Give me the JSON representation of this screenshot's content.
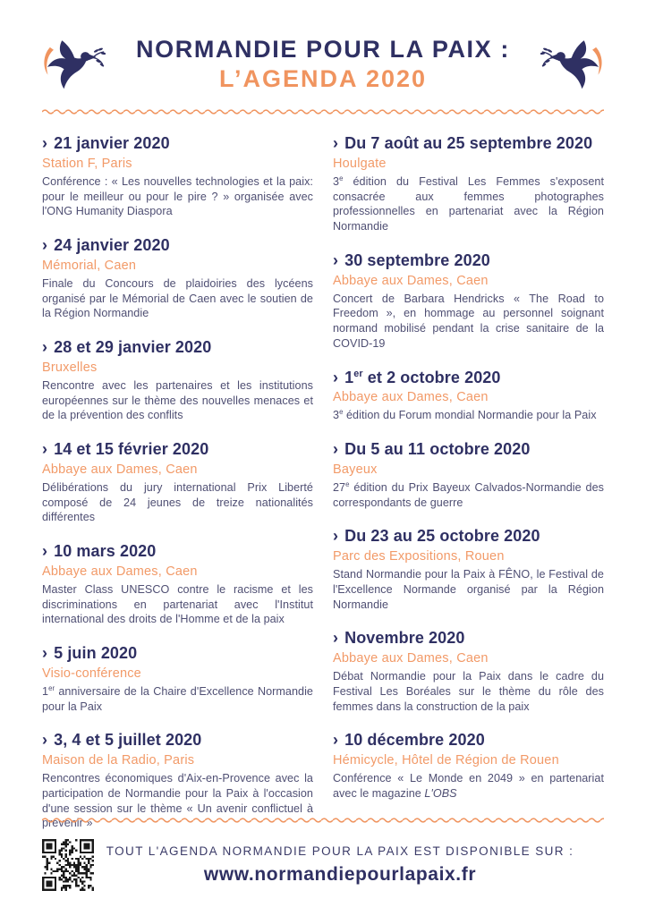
{
  "colors": {
    "navy": "#2F3063",
    "orange": "#F0945F",
    "body_text": "#4F4F73",
    "location_orange": "#F29A68"
  },
  "icons": {
    "left": "dove-olive-branch-icon",
    "right": "dove-olive-branch-icon-mirrored",
    "qr": "qr-code"
  },
  "header": {
    "title_line1": "NORMANDIE POUR LA PAIX :",
    "title_line2": "L’AGENDA 2020"
  },
  "list": {
    "bullet": "›"
  },
  "columns": [
    {
      "events": [
        {
          "date": [
            {
              "text": "21 janvier 2020"
            }
          ],
          "location": "Station F, Paris",
          "desc": [
            {
              "text": "Conférence : « Les nouvelles technologies et la paix: pour le meilleur ou pour le pire ? » organisée avec l'ONG Humanity Diaspora"
            }
          ]
        },
        {
          "date": [
            {
              "text": "24 janvier 2020"
            }
          ],
          "location": "Mémorial, Caen",
          "desc": [
            {
              "text": "Finale du Concours de plaidoiries des lycéens organisé par le Mémorial de Caen avec le soutien de la Région Normandie"
            }
          ]
        },
        {
          "date": [
            {
              "text": "28 et 29 janvier 2020"
            }
          ],
          "location": "Bruxelles",
          "desc": [
            {
              "text": "Rencontre avec les partenaires et les institutions européennes sur le thème des nouvelles menaces et de la prévention des conflits"
            }
          ]
        },
        {
          "date": [
            {
              "text": "14 et 15 février 2020"
            }
          ],
          "location": "Abbaye aux Dames, Caen",
          "desc": [
            {
              "text": "Délibérations du jury international Prix Liberté composé de 24 jeunes de treize nationalités différentes"
            }
          ]
        },
        {
          "date": [
            {
              "text": "10 mars 2020"
            }
          ],
          "location": "Abbaye aux Dames, Caen",
          "desc": [
            {
              "text": "Master Class UNESCO contre le racisme et les discriminations en partenariat avec l'Institut international des droits de l'Homme et de la paix"
            }
          ]
        },
        {
          "date": [
            {
              "text": "5 juin 2020"
            }
          ],
          "location": "Visio-conférence",
          "desc": [
            {
              "text": "1"
            },
            {
              "text": "er",
              "sup": true
            },
            {
              "text": " anniversaire de la Chaire d'Excellence Normandie pour la Paix"
            }
          ]
        },
        {
          "date": [
            {
              "text": "3, 4 et 5 juillet 2020"
            }
          ],
          "location": "Maison de la Radio, Paris",
          "desc": [
            {
              "text": "Rencontres économiques d'Aix-en-Provence avec la participation de Normandie pour la Paix à l'occasion d'une session sur le thème « Un avenir conflictuel à prévenir »"
            }
          ]
        }
      ]
    },
    {
      "events": [
        {
          "date": [
            {
              "text": "Du 7 août au 25 septembre 2020"
            }
          ],
          "location": "Houlgate",
          "desc": [
            {
              "text": "3"
            },
            {
              "text": "e",
              "sup": true
            },
            {
              "text": " édition du Festival Les Femmes s'exposent consacrée aux femmes photographes professionnelles en partenariat avec la Région Normandie"
            }
          ]
        },
        {
          "date": [
            {
              "text": "30 septembre 2020"
            }
          ],
          "location": "Abbaye aux Dames, Caen",
          "desc": [
            {
              "text": "Concert de Barbara Hendricks « The Road to Freedom », en hommage au personnel soignant normand mobilisé pendant la crise sanitaire de la COVID-19"
            }
          ]
        },
        {
          "date": [
            {
              "text": "1"
            },
            {
              "text": "er",
              "sup": true
            },
            {
              "text": " et 2 octobre 2020"
            }
          ],
          "location": "Abbaye aux Dames, Caen",
          "desc": [
            {
              "text": "3"
            },
            {
              "text": "e",
              "sup": true
            },
            {
              "text": " édition du Forum mondial Normandie pour la Paix"
            }
          ]
        },
        {
          "date": [
            {
              "text": "Du 5 au 11 octobre 2020"
            }
          ],
          "location": "Bayeux",
          "desc": [
            {
              "text": "27"
            },
            {
              "text": "e",
              "sup": true
            },
            {
              "text": " édition du Prix Bayeux Calvados-Normandie des correspondants de guerre"
            }
          ]
        },
        {
          "date": [
            {
              "text": "Du 23 au 25 octobre 2020"
            }
          ],
          "location": "Parc des Expositions, Rouen",
          "desc": [
            {
              "text": "Stand Normandie pour la Paix à FÊNO, le Festival de l'Excellence Normande organisé par la Région Normandie"
            }
          ]
        },
        {
          "date": [
            {
              "text": "Novembre 2020"
            }
          ],
          "location": "Abbaye aux Dames, Caen",
          "desc": [
            {
              "text": "Débat Normandie pour la Paix dans le cadre du Festival Les Boréales sur le thème du rôle des femmes dans la construction de la paix"
            }
          ]
        },
        {
          "date": [
            {
              "text": "10 décembre 2020"
            }
          ],
          "location": "Hémicycle, Hôtel de Région de Rouen",
          "desc": [
            {
              "text": "Conférence « Le Monde en 2049 » en partenariat avec le magazine "
            },
            {
              "text": "L'OBS",
              "italic": true
            }
          ]
        }
      ]
    }
  ],
  "footer": {
    "tagline": "TOUT L'AGENDA NORMANDIE POUR LA PAIX EST DISPONIBLE SUR :",
    "url": "www.normandiepourlapaix.fr"
  }
}
